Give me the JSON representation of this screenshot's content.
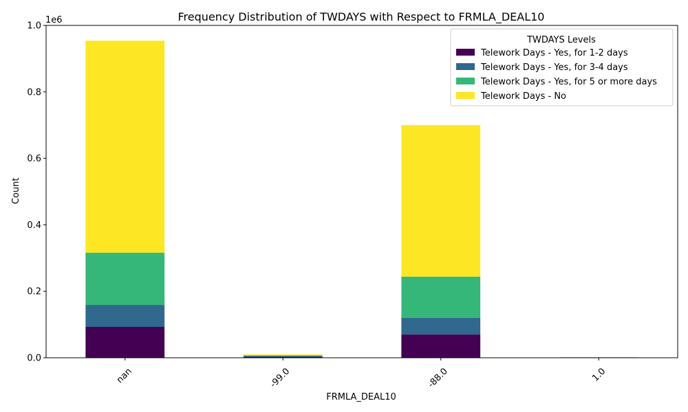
{
  "chart_data": {
    "type": "bar",
    "stacked": true,
    "title": "Frequency Distribution of TWDAYS with Respect to FRMLA_DEAL10",
    "xlabel": "FRMLA_DEAL10",
    "ylabel": "Count",
    "y_scale_label": "1e6",
    "ylim": [
      0,
      1.0
    ],
    "yticks": [
      "0.0",
      "0.2",
      "0.4",
      "0.6",
      "0.8",
      "1.0"
    ],
    "categories": [
      "nan",
      "-99.0",
      "-88.0",
      "1.0"
    ],
    "legend_title": "TWDAYS Levels",
    "legend_position": "top-right",
    "series": [
      {
        "name": "Telework Days - Yes, for 1-2 days",
        "color": "#440154",
        "values": [
          0.093,
          0.003,
          0.07,
          0.0005
        ]
      },
      {
        "name": "Telework Days - Yes, for 3-4 days",
        "color": "#31688e",
        "values": [
          0.066,
          0.002,
          0.05,
          0.0003
        ]
      },
      {
        "name": "Telework Days - Yes, for 5 or more days",
        "color": "#35b779",
        "values": [
          0.157,
          0.002,
          0.124,
          0.0007
        ]
      },
      {
        "name": "Telework Days - No",
        "color": "#fde725",
        "values": [
          0.638,
          0.003,
          0.456,
          0.0005
        ]
      }
    ]
  }
}
